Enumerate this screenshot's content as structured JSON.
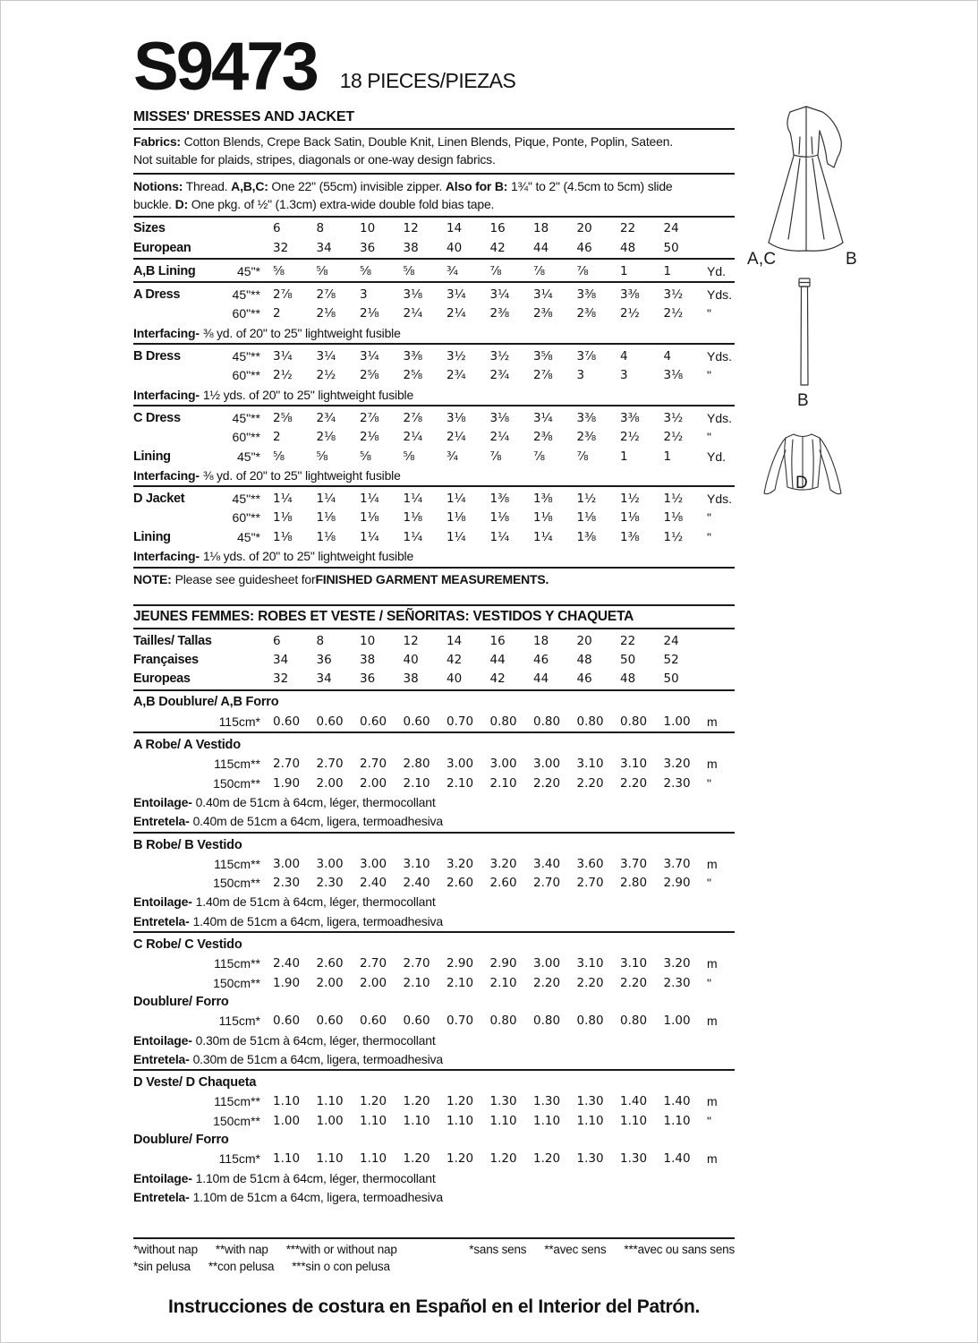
{
  "page": {
    "pattern_number": "S9473",
    "pieces_label": "18 PIECES/PIEZAS",
    "title": "MISSES' DRESSES AND JACKET",
    "bottom_note": "Instrucciones de costura en Español en el Interior del Patrón."
  },
  "info": {
    "fabrics_lines": [
      [
        {
          "b": "Fabrics:"
        },
        {
          "t": " Cotton Blends, Crepe Back Satin, Double Knit, Linen Blends, Pique, Ponte, Poplin, Sateen."
        }
      ],
      [
        {
          "t": "Not suitable for plaids, stripes, diagonals or one-way design fabrics."
        }
      ]
    ],
    "notions_lines": [
      [
        {
          "b": "Notions:"
        },
        {
          "t": " Thread. "
        },
        {
          "b": "A,B,C:"
        },
        {
          "t": " One 22\" (55cm) invisible zipper. "
        },
        {
          "b": "Also for B:"
        },
        {
          "t": " 1¾\" to 2\" (4.5cm to 5cm) slide"
        }
      ],
      [
        {
          "t": "buckle. "
        },
        {
          "b": "D:"
        },
        {
          "t": " One pkg. of ½\" (1.3cm) extra-wide double fold bias tape."
        }
      ]
    ]
  },
  "table": {
    "rows": [
      {
        "kind": "rule"
      },
      {
        "kind": "size",
        "label": "Sizes",
        "values": [
          "6",
          "8",
          "10",
          "12",
          "14",
          "16",
          "18",
          "20",
          "22",
          "24"
        ]
      },
      {
        "kind": "size",
        "label": "European",
        "values": [
          "32",
          "34",
          "36",
          "38",
          "40",
          "42",
          "44",
          "46",
          "48",
          "50"
        ]
      },
      {
        "kind": "rule"
      },
      {
        "kind": "data",
        "label": "A,B Lining",
        "spec": "45\"*",
        "values": [
          "⅝",
          "⅝",
          "⅝",
          "⅝",
          "¾",
          "⅞",
          "⅞",
          "⅞",
          "1",
          "1"
        ],
        "unit": "Yd."
      },
      {
        "kind": "rule"
      },
      {
        "kind": "data",
        "label": "A Dress",
        "spec": "45\"**",
        "values": [
          "2⅞",
          "2⅞",
          "3",
          "3⅛",
          "3¼",
          "3¼",
          "3¼",
          "3⅜",
          "3⅜",
          "3½"
        ],
        "unit": "Yds."
      },
      {
        "kind": "data",
        "label": "",
        "spec": "60\"**",
        "values": [
          "2",
          "2⅛",
          "2⅛",
          "2¼",
          "2¼",
          "2⅜",
          "2⅜",
          "2⅜",
          "2½",
          "2½"
        ],
        "unit": "\""
      },
      {
        "kind": "text",
        "segments": [
          {
            "b": "Interfacing-"
          },
          {
            "t": "⅜ yd. of 20\" to 25\" lightweight fusible"
          }
        ]
      },
      {
        "kind": "rule"
      },
      {
        "kind": "data",
        "label": "B Dress",
        "spec": "45\"**",
        "values": [
          "3¼",
          "3¼",
          "3¼",
          "3⅜",
          "3½",
          "3½",
          "3⅝",
          "3⅞",
          "4",
          "4"
        ],
        "unit": "Yds."
      },
      {
        "kind": "data",
        "label": "",
        "spec": "60\"**",
        "values": [
          "2½",
          "2½",
          "2⅝",
          "2⅝",
          "2¾",
          "2¾",
          "2⅞",
          "3",
          "3",
          "3⅛"
        ],
        "unit": "\""
      },
      {
        "kind": "text",
        "segments": [
          {
            "b": "Interfacing-"
          },
          {
            "t": "1½ yds. of 20\" to 25\" lightweight fusible"
          }
        ]
      },
      {
        "kind": "rule"
      },
      {
        "kind": "data",
        "label": "C Dress",
        "spec": "45\"**",
        "values": [
          "2⅝",
          "2¾",
          "2⅞",
          "2⅞",
          "3⅛",
          "3⅛",
          "3¼",
          "3⅜",
          "3⅜",
          "3½"
        ],
        "unit": "Yds."
      },
      {
        "kind": "data",
        "label": "",
        "spec": "60\"**",
        "values": [
          "2",
          "2⅛",
          "2⅛",
          "2¼",
          "2¼",
          "2¼",
          "2⅜",
          "2⅜",
          "2½",
          "2½"
        ],
        "unit": "\""
      },
      {
        "kind": "data",
        "label": "Lining",
        "spec": "45\"*",
        "values": [
          "⅝",
          "⅝",
          "⅝",
          "⅝",
          "¾",
          "⅞",
          "⅞",
          "⅞",
          "1",
          "1"
        ],
        "unit": "Yd."
      },
      {
        "kind": "text",
        "segments": [
          {
            "b": "Interfacing-"
          },
          {
            "t": "⅜ yd. of 20\" to 25\" lightweight fusible"
          }
        ]
      },
      {
        "kind": "rule"
      },
      {
        "kind": "data",
        "label": "D Jacket",
        "spec": "45\"**",
        "values": [
          "1¼",
          "1¼",
          "1¼",
          "1¼",
          "1¼",
          "1⅜",
          "1⅜",
          "1½",
          "1½",
          "1½"
        ],
        "unit": "Yds."
      },
      {
        "kind": "data",
        "label": "",
        "spec": "60\"**",
        "values": [
          "1⅛",
          "1⅛",
          "1⅛",
          "1⅛",
          "1⅛",
          "1⅛",
          "1⅛",
          "1⅛",
          "1⅛",
          "1⅛"
        ],
        "unit": "\""
      },
      {
        "kind": "data",
        "label": "Lining",
        "spec": "45\"*",
        "values": [
          "1⅛",
          "1⅛",
          "1¼",
          "1¼",
          "1¼",
          "1¼",
          "1¼",
          "1⅜",
          "1⅜",
          "1½"
        ],
        "unit": "\""
      },
      {
        "kind": "text",
        "segments": [
          {
            "b": "Interfacing-"
          },
          {
            "t": "1⅛ yds. of 20\" to 25\" lightweight fusible"
          }
        ]
      },
      {
        "kind": "rule"
      },
      {
        "kind": "text",
        "segments": [
          {
            "b": "NOTE:"
          },
          {
            "t": "Please see guidesheet for "
          },
          {
            "b": "FINISHED GARMENT MEASUREMENTS."
          }
        ]
      },
      {
        "kind": "gap"
      },
      {
        "kind": "rule"
      },
      {
        "kind": "head",
        "text": "JEUNES FEMMES: ROBES ET VESTE / SEÑORITAS: VESTIDOS Y CHAQUETA"
      },
      {
        "kind": "rule"
      },
      {
        "kind": "size",
        "label": "Tailles/ Tallas",
        "values": [
          "6",
          "8",
          "10",
          "12",
          "14",
          "16",
          "18",
          "20",
          "22",
          "24"
        ]
      },
      {
        "kind": "size",
        "label": "Françaises",
        "values": [
          "34",
          "36",
          "38",
          "40",
          "42",
          "44",
          "46",
          "48",
          "50",
          "52"
        ]
      },
      {
        "kind": "size",
        "label": "Europeas",
        "values": [
          "32",
          "34",
          "36",
          "38",
          "40",
          "42",
          "44",
          "46",
          "48",
          "50"
        ]
      },
      {
        "kind": "rule"
      },
      {
        "kind": "section",
        "text": "A,B Doublure/ A,B Forro"
      },
      {
        "kind": "data",
        "label": "",
        "spec": "115cm*",
        "values": [
          "0.60",
          "0.60",
          "0.60",
          "0.60",
          "0.70",
          "0.80",
          "0.80",
          "0.80",
          "0.80",
          "1.00"
        ],
        "unit": "m"
      },
      {
        "kind": "rule"
      },
      {
        "kind": "section",
        "text": "A Robe/ A Vestido"
      },
      {
        "kind": "data",
        "label": "",
        "spec": "115cm**",
        "values": [
          "2.70",
          "2.70",
          "2.70",
          "2.80",
          "3.00",
          "3.00",
          "3.00",
          "3.10",
          "3.10",
          "3.20"
        ],
        "unit": "m"
      },
      {
        "kind": "data",
        "label": "",
        "spec": "150cm**",
        "values": [
          "1.90",
          "2.00",
          "2.00",
          "2.10",
          "2.10",
          "2.10",
          "2.20",
          "2.20",
          "2.20",
          "2.30"
        ],
        "unit": "\""
      },
      {
        "kind": "text",
        "segments": [
          {
            "b": "Entoilage-"
          },
          {
            "t": "0.40m de 51cm à 64cm, léger, thermocollant"
          }
        ]
      },
      {
        "kind": "text",
        "segments": [
          {
            "b": "Entretela-"
          },
          {
            "t": "0.40m de 51cm a 64cm, ligera, termoadhesiva"
          }
        ]
      },
      {
        "kind": "rule"
      },
      {
        "kind": "section",
        "text": "B Robe/ B Vestido"
      },
      {
        "kind": "data",
        "label": "",
        "spec": "115cm**",
        "values": [
          "3.00",
          "3.00",
          "3.00",
          "3.10",
          "3.20",
          "3.20",
          "3.40",
          "3.60",
          "3.70",
          "3.70"
        ],
        "unit": "m"
      },
      {
        "kind": "data",
        "label": "",
        "spec": "150cm**",
        "values": [
          "2.30",
          "2.30",
          "2.40",
          "2.40",
          "2.60",
          "2.60",
          "2.70",
          "2.70",
          "2.80",
          "2.90"
        ],
        "unit": "\""
      },
      {
        "kind": "text",
        "segments": [
          {
            "b": "Entoilage-"
          },
          {
            "t": "1.40m de 51cm à 64cm, léger, thermocollant"
          }
        ]
      },
      {
        "kind": "text",
        "segments": [
          {
            "b": "Entretela-"
          },
          {
            "t": "1.40m de 51cm a 64cm, ligera, termoadhesiva"
          }
        ]
      },
      {
        "kind": "rule"
      },
      {
        "kind": "section",
        "text": "C Robe/ C Vestido"
      },
      {
        "kind": "data",
        "label": "",
        "spec": "115cm**",
        "values": [
          "2.40",
          "2.60",
          "2.70",
          "2.70",
          "2.90",
          "2.90",
          "3.00",
          "3.10",
          "3.10",
          "3.20"
        ],
        "unit": "m"
      },
      {
        "kind": "data",
        "label": "",
        "spec": "150cm**",
        "values": [
          "1.90",
          "2.00",
          "2.00",
          "2.10",
          "2.10",
          "2.10",
          "2.20",
          "2.20",
          "2.20",
          "2.30"
        ],
        "unit": "\""
      },
      {
        "kind": "section",
        "text": "Doublure/ Forro"
      },
      {
        "kind": "data",
        "label": "",
        "spec": "115cm*",
        "values": [
          "0.60",
          "0.60",
          "0.60",
          "0.60",
          "0.70",
          "0.80",
          "0.80",
          "0.80",
          "0.80",
          "1.00"
        ],
        "unit": "m"
      },
      {
        "kind": "text",
        "segments": [
          {
            "b": "Entoilage-"
          },
          {
            "t": "0.30m de 51cm à 64cm, léger, thermocollant"
          }
        ]
      },
      {
        "kind": "text",
        "segments": [
          {
            "b": "Entretela-"
          },
          {
            "t": "0.30m de 51cm a 64cm, ligera, termoadhesiva"
          }
        ]
      },
      {
        "kind": "rule"
      },
      {
        "kind": "section",
        "text": "D Veste/ D Chaqueta"
      },
      {
        "kind": "data",
        "label": "",
        "spec": "115cm**",
        "values": [
          "1.10",
          "1.10",
          "1.20",
          "1.20",
          "1.20",
          "1.30",
          "1.30",
          "1.30",
          "1.40",
          "1.40"
        ],
        "unit": "m"
      },
      {
        "kind": "data",
        "label": "",
        "spec": "150cm**",
        "values": [
          "1.00",
          "1.00",
          "1.10",
          "1.10",
          "1.10",
          "1.10",
          "1.10",
          "1.10",
          "1.10",
          "1.10"
        ],
        "unit": "\""
      },
      {
        "kind": "section",
        "text": "Doublure/ Forro"
      },
      {
        "kind": "data",
        "label": "",
        "spec": "115cm*",
        "values": [
          "1.10",
          "1.10",
          "1.10",
          "1.20",
          "1.20",
          "1.20",
          "1.20",
          "1.30",
          "1.30",
          "1.40"
        ],
        "unit": "m"
      },
      {
        "kind": "text",
        "segments": [
          {
            "b": "Entoilage-"
          },
          {
            "t": "1.10m de 51cm à 64cm, léger, thermocollant"
          }
        ]
      },
      {
        "kind": "text",
        "segments": [
          {
            "b": "Entretela-"
          },
          {
            "t": "1.10m de 51cm a 64cm, ligera, termoadhesiva"
          }
        ]
      }
    ]
  },
  "footnotes": {
    "en_line1": [
      "*without nap",
      "**with nap",
      "***with or without nap"
    ],
    "fr_line1": [
      "*sans sens",
      "**avec sens",
      "***avec ou sans sens"
    ],
    "es_line2": [
      "*sin pelusa",
      "**con pelusa",
      "***sin o con pelusa"
    ]
  },
  "illustrations": {
    "dress_label_left": "A,C",
    "dress_label_right": "B",
    "belt_label": "B",
    "jacket_label": "D"
  }
}
